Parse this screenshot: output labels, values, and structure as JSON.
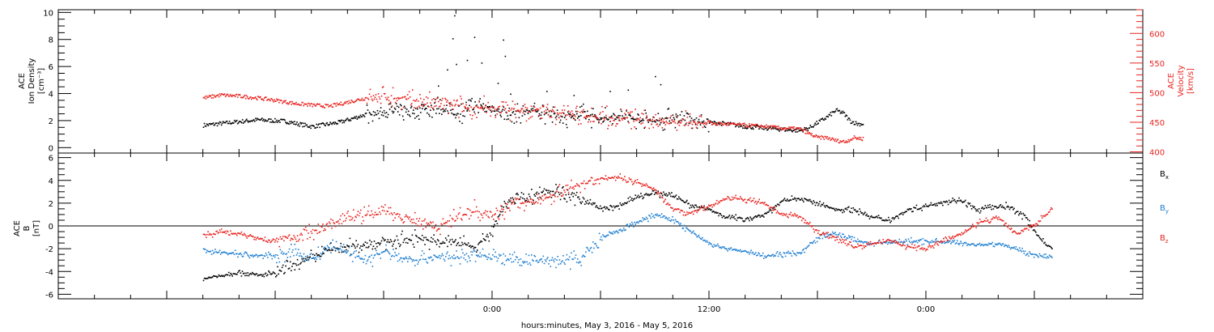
{
  "chart_data": [
    {
      "type": "scatter",
      "panel": "top",
      "ylabel_left": [
        "ACE",
        "Ion Density",
        "[cm⁻³]"
      ],
      "ylabel_right": [
        "ACE",
        "Velocity",
        "[km/s]"
      ],
      "y_left": {
        "ylim": [
          -0.4,
          10.2
        ],
        "ticks": [
          "0",
          "2",
          "4",
          "6",
          "8",
          "10"
        ]
      },
      "y_right": {
        "ylim": [
          398,
          640
        ],
        "ticks": [
          "400",
          "450",
          "500",
          "550",
          "600"
        ]
      },
      "colors": {
        "density": "#000000",
        "velocity": "#e8231f"
      },
      "series": [
        {
          "axis": "left",
          "color": "#000000",
          "points": [
            [
              -16,
              1.7
            ],
            [
              -14.5,
              1.9
            ],
            [
              -13,
              2.1
            ],
            [
              -11.5,
              2.0
            ],
            [
              -10,
              1.6
            ],
            [
              -8.5,
              1.9
            ],
            [
              -7,
              2.5
            ],
            [
              -5.5,
              2.7
            ],
            [
              -4.5,
              2.8
            ],
            [
              -3,
              3.0
            ],
            [
              -2,
              2.5
            ],
            [
              -1,
              3.2
            ],
            [
              0,
              2.9
            ],
            [
              1,
              2.4
            ],
            [
              2,
              2.8
            ],
            [
              3,
              2.6
            ],
            [
              4,
              2.3
            ],
            [
              5,
              2.5
            ],
            [
              6,
              2.2
            ],
            [
              7,
              2.4
            ],
            [
              8,
              2.1
            ],
            [
              9,
              2.0
            ],
            [
              10,
              2.3
            ],
            [
              11,
              2.0
            ],
            [
              12,
              1.9
            ],
            [
              13,
              1.8
            ],
            [
              14,
              1.6
            ],
            [
              15,
              1.5
            ],
            [
              16,
              1.4
            ],
            [
              17,
              1.3
            ],
            [
              17.5,
              1.5
            ],
            [
              18,
              1.9
            ],
            [
              18.5,
              2.3
            ],
            [
              19,
              2.8
            ],
            [
              19.4,
              2.6
            ],
            [
              19.8,
              2.0
            ],
            [
              20.2,
              1.8
            ],
            [
              20.5,
              1.8
            ]
          ]
        },
        {
          "axis": "right",
          "color": "#e8231f",
          "points": [
            [
              -16,
              492
            ],
            [
              -15,
              497
            ],
            [
              -14,
              495
            ],
            [
              -13,
              492
            ],
            [
              -12,
              488
            ],
            [
              -11,
              483
            ],
            [
              -10,
              480
            ],
            [
              -9,
              478
            ],
            [
              -8,
              485
            ],
            [
              -7,
              492
            ],
            [
              -6,
              494
            ],
            [
              -5,
              490
            ],
            [
              -4,
              486
            ],
            [
              -3,
              482
            ],
            [
              -2,
              478
            ],
            [
              -1,
              474
            ],
            [
              0,
              475
            ],
            [
              1,
              472
            ],
            [
              2,
              470
            ],
            [
              3,
              468
            ],
            [
              4,
              466
            ],
            [
              5,
              463
            ],
            [
              6,
              460
            ],
            [
              7,
              458
            ],
            [
              8,
              456
            ],
            [
              9,
              454
            ],
            [
              10,
              452
            ],
            [
              11,
              450
            ],
            [
              12,
              449
            ],
            [
              13,
              448
            ],
            [
              14,
              446
            ],
            [
              15,
              444
            ],
            [
              16,
              441
            ],
            [
              17,
              440
            ],
            [
              17.5,
              432
            ],
            [
              18,
              425
            ],
            [
              18.5,
              425
            ],
            [
              19,
              420
            ],
            [
              19.5,
              418
            ],
            [
              20,
              425
            ],
            [
              20.5,
              423
            ]
          ]
        }
      ],
      "spikes_density": [
        [
          -2.1,
          9.8
        ],
        [
          -2.2,
          8.1
        ],
        [
          -2.0,
          6.2
        ],
        [
          -1.0,
          8.2
        ],
        [
          -1.4,
          6.5
        ],
        [
          -0.6,
          6.3
        ],
        [
          0.6,
          8.0
        ],
        [
          0.7,
          6.8
        ],
        [
          0.3,
          4.8
        ],
        [
          -2.5,
          5.8
        ],
        [
          -3.0,
          4.6
        ],
        [
          1.0,
          4.0
        ],
        [
          6.5,
          4.2
        ],
        [
          7.5,
          4.3
        ],
        [
          9.0,
          5.3
        ],
        [
          9.3,
          4.7
        ],
        [
          3.0,
          4.2
        ],
        [
          4.5,
          3.9
        ]
      ]
    },
    {
      "type": "scatter",
      "panel": "bottom",
      "ylabel": [
        "ACE",
        "B",
        "[nT]"
      ],
      "ylim": [
        -6.4,
        6.4
      ],
      "ticks": [
        "-6",
        "-4",
        "-2",
        "0",
        "2",
        "4",
        "6"
      ],
      "legend": [
        {
          "label": "Bx",
          "color": "#000000"
        },
        {
          "label": "By",
          "color": "#1f7fd0"
        },
        {
          "label": "Bz",
          "color": "#e8231f"
        }
      ],
      "series": [
        {
          "name": "Bx",
          "color": "#000000",
          "points": [
            [
              -16,
              -4.6
            ],
            [
              -15,
              -4.3
            ],
            [
              -14,
              -4.0
            ],
            [
              -13,
              -4.3
            ],
            [
              -12,
              -4.1
            ],
            [
              -11,
              -3.5
            ],
            [
              -10,
              -2.8
            ],
            [
              -9,
              -2.0
            ],
            [
              -8,
              -1.8
            ],
            [
              -7,
              -1.5
            ],
            [
              -6,
              -1.4
            ],
            [
              -5,
              -1.2
            ],
            [
              -4,
              -1.0
            ],
            [
              -3,
              -1.5
            ],
            [
              -2,
              -1.3
            ],
            [
              -1,
              -1.8
            ],
            [
              0,
              -0.5
            ],
            [
              0.5,
              1.5
            ],
            [
              1,
              2.5
            ],
            [
              2,
              2.6
            ],
            [
              3,
              3.2
            ],
            [
              4,
              2.8
            ],
            [
              5,
              2.4
            ],
            [
              6,
              1.5
            ],
            [
              7,
              1.8
            ],
            [
              8,
              2.6
            ],
            [
              9,
              2.9
            ],
            [
              10,
              2.8
            ],
            [
              11,
              1.8
            ],
            [
              12,
              1.5
            ],
            [
              13,
              0.8
            ],
            [
              14,
              0.7
            ],
            [
              15,
              1.0
            ],
            [
              16,
              2.2
            ],
            [
              17,
              2.5
            ],
            [
              18,
              2.0
            ],
            [
              19,
              1.5
            ],
            [
              20,
              1.5
            ],
            [
              21,
              0.8
            ],
            [
              22,
              0.6
            ],
            [
              23,
              1.5
            ],
            [
              24,
              1.8
            ],
            [
              25,
              2.2
            ],
            [
              26,
              2.3
            ],
            [
              26.8,
              1.4
            ],
            [
              27.5,
              1.7
            ],
            [
              28.5,
              1.8
            ],
            [
              29.5,
              0.8
            ],
            [
              30,
              -0.4
            ],
            [
              30.5,
              -1.5
            ],
            [
              31,
              -2.0
            ]
          ]
        },
        {
          "name": "By",
          "color": "#1f7fd0",
          "points": [
            [
              -16,
              -2.0
            ],
            [
              -15,
              -2.3
            ],
            [
              -14,
              -2.4
            ],
            [
              -13,
              -2.6
            ],
            [
              -12,
              -2.5
            ],
            [
              -11,
              -2.3
            ],
            [
              -10,
              -2.8
            ],
            [
              -9,
              -1.8
            ],
            [
              -8,
              -2.2
            ],
            [
              -7,
              -3.0
            ],
            [
              -6,
              -2.2
            ],
            [
              -5,
              -2.8
            ],
            [
              -4,
              -2.9
            ],
            [
              -3,
              -2.6
            ],
            [
              -2,
              -2.8
            ],
            [
              -1,
              -2.5
            ],
            [
              0,
              -2.6
            ],
            [
              1,
              -2.9
            ],
            [
              2,
              -3.1
            ],
            [
              3,
              -2.9
            ],
            [
              4,
              -3.0
            ],
            [
              5,
              -2.7
            ],
            [
              6,
              -1.0
            ],
            [
              7,
              -0.4
            ],
            [
              8,
              0.4
            ],
            [
              9,
              1.0
            ],
            [
              10,
              0.6
            ],
            [
              11,
              -0.5
            ],
            [
              12,
              -1.5
            ],
            [
              13,
              -2.0
            ],
            [
              14,
              -2.2
            ],
            [
              15,
              -2.6
            ],
            [
              16,
              -2.4
            ],
            [
              17,
              -2.3
            ],
            [
              18,
              -1.0
            ],
            [
              19,
              -0.6
            ],
            [
              20,
              -1.2
            ],
            [
              21,
              -1.5
            ],
            [
              22,
              -1.4
            ],
            [
              23,
              -1.3
            ],
            [
              24,
              -1.3
            ],
            [
              25,
              -1.3
            ],
            [
              26,
              -1.5
            ],
            [
              27,
              -1.6
            ],
            [
              28,
              -1.5
            ],
            [
              29,
              -2.0
            ],
            [
              30,
              -2.5
            ],
            [
              31,
              -2.7
            ]
          ]
        },
        {
          "name": "Bz",
          "color": "#e8231f",
          "points": [
            [
              -16,
              -0.7
            ],
            [
              -15,
              -0.5
            ],
            [
              -14,
              -0.6
            ],
            [
              -13,
              -1.0
            ],
            [
              -12,
              -1.3
            ],
            [
              -11,
              -1.0
            ],
            [
              -10,
              -0.4
            ],
            [
              -9,
              0.2
            ],
            [
              -8,
              0.8
            ],
            [
              -7,
              1.0
            ],
            [
              -6,
              1.4
            ],
            [
              -5,
              0.9
            ],
            [
              -4,
              0.5
            ],
            [
              -3,
              0.0
            ],
            [
              -2,
              0.8
            ],
            [
              -1,
              1.5
            ],
            [
              0,
              1.0
            ],
            [
              1,
              1.8
            ],
            [
              2,
              2.2
            ],
            [
              3,
              2.5
            ],
            [
              4,
              3.2
            ],
            [
              5,
              3.8
            ],
            [
              6,
              4.2
            ],
            [
              7,
              4.3
            ],
            [
              8,
              3.9
            ],
            [
              9,
              3.2
            ],
            [
              10,
              1.5
            ],
            [
              11,
              1.2
            ],
            [
              12,
              1.8
            ],
            [
              13,
              2.5
            ],
            [
              14,
              2.4
            ],
            [
              15,
              2.0
            ],
            [
              16,
              1.0
            ],
            [
              17,
              0.9
            ],
            [
              18,
              -0.5
            ],
            [
              19,
              -1.0
            ],
            [
              20,
              -1.8
            ],
            [
              21,
              -1.5
            ],
            [
              22,
              -1.2
            ],
            [
              23,
              -1.8
            ],
            [
              24,
              -2.0
            ],
            [
              25,
              -1.2
            ],
            [
              26,
              -0.6
            ],
            [
              27,
              0.4
            ],
            [
              28,
              0.8
            ],
            [
              29,
              -0.6
            ],
            [
              30,
              0.2
            ],
            [
              31,
              1.6
            ]
          ]
        }
      ]
    }
  ],
  "x_axis": {
    "range_hours": [
      -24,
      36
    ],
    "tick_labels": [
      {
        "hour": 0,
        "label": "0:00"
      },
      {
        "hour": 12,
        "label": "12:00"
      },
      {
        "hour": 24,
        "label": "0:00"
      }
    ],
    "xlabel": "hours:minutes, May  3, 2016 - May  5, 2016"
  }
}
